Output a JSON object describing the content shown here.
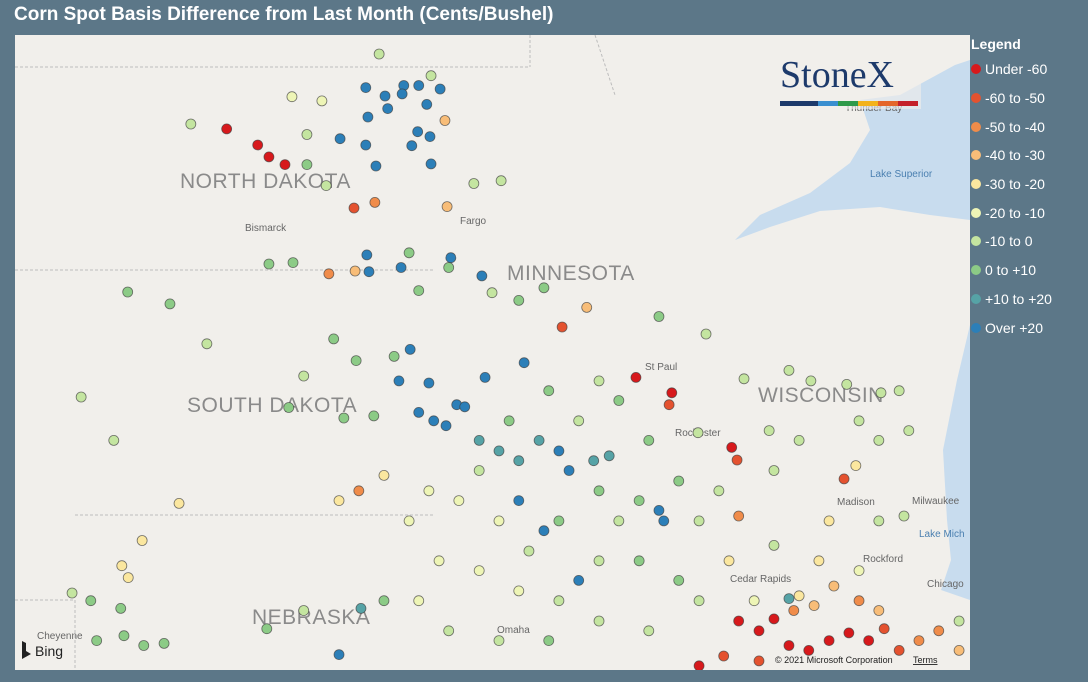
{
  "title": "Corn Spot Basis Difference from Last Month (Cents/Bushel)",
  "legend": {
    "title": "Legend",
    "items": [
      {
        "label": "Under -60",
        "color": "#d7191c"
      },
      {
        "label": "-60 to -50",
        "color": "#e4522f"
      },
      {
        "label": "-50 to -40",
        "color": "#f08c4a"
      },
      {
        "label": "-40 to -30",
        "color": "#f8bd78"
      },
      {
        "label": "-30 to -20",
        "color": "#fbe79f"
      },
      {
        "label": "-20 to -10",
        "color": "#eef5b6"
      },
      {
        "label": "-10 to 0",
        "color": "#c4e5a0"
      },
      {
        "label": "0 to +10",
        "color": "#8ccb86"
      },
      {
        "label": "+10 to +20",
        "color": "#56a3a6"
      },
      {
        "label": "Over +20",
        "color": "#2c7fb8"
      }
    ]
  },
  "map": {
    "labels": {
      "nd": "NORTH DAKOTA",
      "sd": "SOUTH DAKOTA",
      "mn": "MINNESOTA",
      "wi": "WISCONSIN",
      "ne": "NEBRASKA",
      "bismarck": "Bismarck",
      "fargo": "Fargo",
      "stpaul": "St Paul",
      "rochester": "Rochester",
      "madison": "Madison",
      "milwaukee": "Milwaukee",
      "rockford": "Rockford",
      "cedar": "Cedar Rapids",
      "chicago": "Chicago",
      "omaha": "Omaha",
      "cheyenne": "Cheyenne",
      "superior": "Lake Superior",
      "michigan": "Lake Mich",
      "thunder": "Thunder Bay"
    },
    "logo": "StoneX",
    "provider": "Bing",
    "copyright": "© 2021 Microsoft Corporation",
    "terms": "Terms"
  },
  "stations": [
    [
      -98.56,
      48.93,
      9
    ],
    [
      -98.2,
      48.81,
      9
    ],
    [
      -97.85,
      48.96,
      9
    ],
    [
      -97.88,
      48.84,
      9
    ],
    [
      -97.57,
      48.96,
      9
    ],
    [
      -97.17,
      48.91,
      9
    ],
    [
      -97.42,
      48.69,
      9
    ],
    [
      -98.52,
      48.51,
      9
    ],
    [
      -98.15,
      48.63,
      9
    ],
    [
      -99.04,
      48.2,
      9
    ],
    [
      -98.56,
      48.11,
      9
    ],
    [
      -97.7,
      48.1,
      9
    ],
    [
      -97.59,
      48.3,
      9
    ],
    [
      -97.36,
      48.23,
      9
    ],
    [
      -98.37,
      47.81,
      9
    ],
    [
      -97.34,
      47.84,
      9
    ],
    [
      -101.16,
      48.34,
      0
    ],
    [
      -100.58,
      48.11,
      0
    ],
    [
      -100.37,
      47.94,
      0
    ],
    [
      -100.07,
      47.83,
      0
    ],
    [
      -98.31,
      49.41,
      6
    ],
    [
      -97.34,
      49.1,
      6
    ],
    [
      -101.83,
      48.41,
      6
    ],
    [
      -99.94,
      48.8,
      5
    ],
    [
      -99.38,
      48.74,
      5
    ],
    [
      -99.66,
      48.26,
      6
    ],
    [
      -99.66,
      47.83,
      7
    ],
    [
      -99.3,
      47.53,
      6
    ],
    [
      -98.78,
      47.21,
      1
    ],
    [
      -98.39,
      47.29,
      2
    ],
    [
      -97.04,
      47.23,
      3
    ],
    [
      -97.08,
      48.46,
      3
    ],
    [
      -96.97,
      46.5,
      9
    ],
    [
      -96.54,
      47.56,
      6
    ],
    [
      -96.03,
      47.6,
      6
    ],
    [
      -103.01,
      46.01,
      7
    ],
    [
      -102.22,
      45.84,
      7
    ],
    [
      -101.53,
      45.27,
      6
    ],
    [
      -100.37,
      46.41,
      7
    ],
    [
      -99.92,
      46.43,
      7
    ],
    [
      -99.25,
      46.27,
      2
    ],
    [
      -98.76,
      46.31,
      3
    ],
    [
      -98.5,
      46.3,
      9
    ],
    [
      -98.54,
      46.54,
      9
    ],
    [
      -97.9,
      46.36,
      9
    ],
    [
      -97.75,
      46.57,
      7
    ],
    [
      -97.57,
      46.03,
      7
    ],
    [
      -97.01,
      46.36,
      7
    ],
    [
      -96.39,
      46.24,
      9
    ],
    [
      -96.2,
      46.0,
      6
    ],
    [
      -95.7,
      45.89,
      7
    ],
    [
      -95.23,
      46.07,
      7
    ],
    [
      -94.43,
      45.79,
      3
    ],
    [
      -94.89,
      45.51,
      1
    ],
    [
      -93.08,
      45.66,
      7
    ],
    [
      -92.2,
      45.41,
      6
    ],
    [
      -93.51,
      44.79,
      0
    ],
    [
      -92.84,
      44.57,
      0
    ],
    [
      -92.89,
      44.4,
      1
    ],
    [
      -91.72,
      43.79,
      0
    ],
    [
      -91.62,
      43.61,
      1
    ],
    [
      -92.35,
      44.0,
      6
    ],
    [
      -99.16,
      45.34,
      7
    ],
    [
      -98.74,
      45.03,
      7
    ],
    [
      -98.03,
      45.09,
      7
    ],
    [
      -97.73,
      45.19,
      9
    ],
    [
      -97.94,
      44.74,
      9
    ],
    [
      -97.38,
      44.71,
      9
    ],
    [
      -96.86,
      44.4,
      9
    ],
    [
      -96.71,
      44.37,
      9
    ],
    [
      -97.57,
      44.29,
      9
    ],
    [
      -97.29,
      44.17,
      9
    ],
    [
      -97.06,
      44.1,
      9
    ],
    [
      -96.33,
      44.79,
      9
    ],
    [
      -95.6,
      45.0,
      9
    ],
    [
      -99.72,
      44.81,
      6
    ],
    [
      -100.0,
      44.36,
      7
    ],
    [
      -98.97,
      44.21,
      7
    ],
    [
      -98.41,
      44.24,
      7
    ],
    [
      -103.88,
      44.51,
      6
    ],
    [
      -103.27,
      43.89,
      6
    ],
    [
      -102.05,
      42.99,
      4
    ],
    [
      -102.74,
      42.46,
      4
    ],
    [
      -103.12,
      42.1,
      4
    ],
    [
      -103.0,
      41.93,
      4
    ],
    [
      -104.05,
      41.71,
      6
    ],
    [
      -103.7,
      41.6,
      7
    ],
    [
      -103.14,
      41.49,
      7
    ],
    [
      -103.59,
      41.03,
      7
    ],
    [
      -103.08,
      41.1,
      7
    ],
    [
      -102.71,
      40.96,
      7
    ],
    [
      -102.33,
      40.99,
      7
    ],
    [
      -100.41,
      41.2,
      7
    ],
    [
      -99.72,
      41.46,
      6
    ],
    [
      -99.06,
      40.83,
      9
    ],
    [
      -98.65,
      41.49,
      8
    ],
    [
      -98.22,
      41.6,
      7
    ],
    [
      -96.44,
      43.89,
      8
    ],
    [
      -96.07,
      43.74,
      8
    ],
    [
      -95.7,
      43.6,
      8
    ],
    [
      -95.32,
      43.89,
      8
    ],
    [
      -94.95,
      43.74,
      9
    ],
    [
      -94.76,
      43.46,
      9
    ],
    [
      -94.3,
      43.6,
      8
    ],
    [
      -94.01,
      43.67,
      8
    ],
    [
      -93.08,
      42.89,
      9
    ],
    [
      -92.99,
      42.74,
      9
    ],
    [
      -95.23,
      42.6,
      9
    ],
    [
      -95.7,
      43.03,
      9
    ],
    [
      -96.44,
      43.46,
      6
    ],
    [
      -96.82,
      43.03,
      5
    ],
    [
      -96.07,
      42.74,
      5
    ],
    [
      -95.51,
      42.31,
      6
    ],
    [
      -94.95,
      42.74,
      7
    ],
    [
      -94.2,
      43.17,
      7
    ],
    [
      -93.83,
      42.74,
      6
    ],
    [
      -93.45,
      43.03,
      7
    ],
    [
      -92.71,
      43.31,
      7
    ],
    [
      -92.33,
      42.74,
      6
    ],
    [
      -91.96,
      43.17,
      6
    ],
    [
      -94.58,
      41.89,
      9
    ],
    [
      -94.95,
      41.6,
      6
    ],
    [
      -94.2,
      42.17,
      6
    ],
    [
      -93.45,
      42.17,
      7
    ],
    [
      -92.71,
      41.89,
      7
    ],
    [
      -92.33,
      41.6,
      6
    ],
    [
      -95.7,
      41.74,
      5
    ],
    [
      -96.44,
      42.03,
      5
    ],
    [
      -97.19,
      42.17,
      5
    ],
    [
      -97.57,
      41.6,
      5
    ],
    [
      -97.01,
      41.17,
      6
    ],
    [
      -96.07,
      41.03,
      6
    ],
    [
      -95.14,
      41.03,
      7
    ],
    [
      -94.2,
      41.31,
      6
    ],
    [
      -93.27,
      41.17,
      6
    ],
    [
      -97.75,
      42.74,
      5
    ],
    [
      -97.38,
      43.17,
      5
    ],
    [
      -98.69,
      43.17,
      2
    ],
    [
      -98.22,
      43.39,
      4
    ],
    [
      -99.06,
      43.03,
      4
    ],
    [
      -94.58,
      44.17,
      6
    ],
    [
      -93.83,
      44.46,
      7
    ],
    [
      -93.27,
      43.89,
      7
    ],
    [
      -94.2,
      44.74,
      6
    ],
    [
      -95.14,
      44.6,
      7
    ],
    [
      -95.88,
      44.17,
      7
    ],
    [
      -91.59,
      41.31,
      0
    ],
    [
      -91.21,
      41.17,
      0
    ],
    [
      -90.93,
      41.34,
      0
    ],
    [
      -90.65,
      40.96,
      0
    ],
    [
      -90.28,
      40.89,
      0
    ],
    [
      -89.9,
      41.03,
      0
    ],
    [
      -89.53,
      41.14,
      0
    ],
    [
      -89.16,
      41.03,
      0
    ],
    [
      -88.87,
      41.2,
      1
    ],
    [
      -88.59,
      40.89,
      1
    ],
    [
      -88.22,
      41.03,
      2
    ],
    [
      -87.85,
      41.17,
      2
    ],
    [
      -87.47,
      40.89,
      3
    ],
    [
      -92.33,
      40.67,
      0
    ],
    [
      -91.87,
      40.81,
      1
    ],
    [
      -91.21,
      40.74,
      1
    ],
    [
      -90.56,
      41.46,
      2
    ],
    [
      -90.18,
      41.53,
      3
    ],
    [
      -90.46,
      41.67,
      4
    ],
    [
      -89.81,
      41.81,
      3
    ],
    [
      -89.34,
      41.6,
      2
    ],
    [
      -88.97,
      41.46,
      3
    ],
    [
      -89.34,
      42.03,
      5
    ],
    [
      -90.09,
      42.17,
      4
    ],
    [
      -90.65,
      41.63,
      8
    ],
    [
      -91.3,
      41.6,
      5
    ],
    [
      -90.65,
      44.89,
      6
    ],
    [
      -90.24,
      44.74,
      6
    ],
    [
      -89.57,
      44.69,
      6
    ],
    [
      -88.93,
      44.57,
      6
    ],
    [
      -88.59,
      44.6,
      6
    ],
    [
      -89.34,
      44.17,
      6
    ],
    [
      -88.97,
      43.89,
      6
    ],
    [
      -88.41,
      44.03,
      6
    ],
    [
      -89.62,
      43.34,
      1
    ],
    [
      -89.4,
      43.53,
      4
    ],
    [
      -89.9,
      42.74,
      4
    ],
    [
      -88.97,
      42.74,
      6
    ],
    [
      -88.5,
      42.81,
      6
    ],
    [
      -90.46,
      43.89,
      6
    ],
    [
      -91.02,
      44.03,
      6
    ],
    [
      -91.49,
      44.77,
      6
    ],
    [
      -90.93,
      43.46,
      6
    ],
    [
      -91.59,
      42.81,
      2
    ],
    [
      -91.77,
      42.17,
      4
    ],
    [
      -90.93,
      42.39,
      6
    ],
    [
      -87.47,
      41.31,
      6
    ]
  ]
}
